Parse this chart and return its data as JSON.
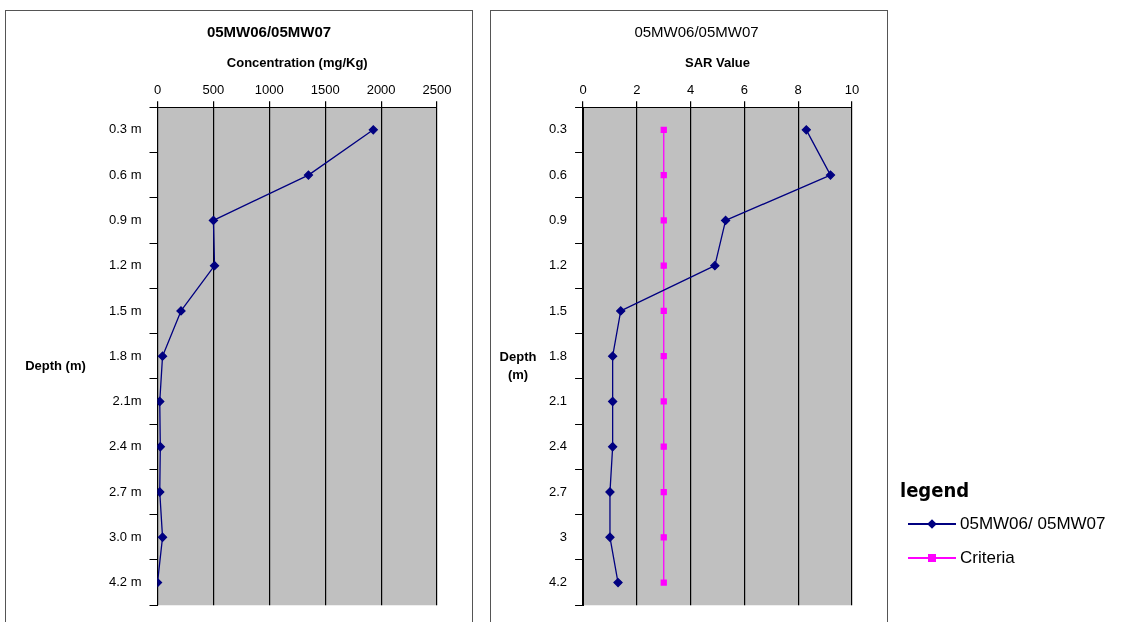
{
  "chart_data": [
    {
      "type": "line",
      "orientation": "horizontal",
      "title": "05MW06/05MW07",
      "xlabel": "Concentration (mg/Kg)",
      "ylabel": "Depth (m)",
      "categories": [
        "0.3 m",
        "0.6 m",
        "0.9 m",
        "1.2 m",
        "1.5 m",
        "1.8 m",
        "2.1m",
        "2.4 m",
        "2.7 m",
        "3.0 m",
        "4.2 m"
      ],
      "values": [
        1930,
        1350,
        500,
        510,
        210,
        45,
        20,
        25,
        20,
        45,
        0
      ],
      "color": "#000080",
      "marker": "diamond",
      "xlim": [
        0,
        2500
      ],
      "xticks": [
        0,
        500,
        1000,
        1500,
        2000,
        2500
      ],
      "grid": "x"
    },
    {
      "type": "line",
      "orientation": "horizontal",
      "title": "05MW06/05MW07",
      "xlabel": "SAR Value",
      "ylabel": "Depth (m)",
      "categories": [
        "0.3",
        "0.6",
        "0.9",
        "1.2",
        "1.5",
        "1.8",
        "2.1",
        "2.4",
        "2.7",
        "3",
        "4.2"
      ],
      "series": [
        {
          "name": "05MW06/ 05MW07",
          "color": "#000080",
          "marker": "diamond",
          "values": [
            8.3,
            9.2,
            5.3,
            4.9,
            1.4,
            1.1,
            1.1,
            1.1,
            1.0,
            1.0,
            1.3
          ]
        },
        {
          "name": "Criteria",
          "color": "#ff00ff",
          "marker": "square",
          "values": [
            3,
            3,
            3,
            3,
            3,
            3,
            3,
            3,
            3,
            3,
            3
          ]
        }
      ],
      "xlim": [
        0,
        10
      ],
      "xticks": [
        0,
        2,
        4,
        6,
        8,
        10
      ],
      "grid": "x",
      "legend": "bottom right",
      "legend_title": "legend"
    }
  ]
}
